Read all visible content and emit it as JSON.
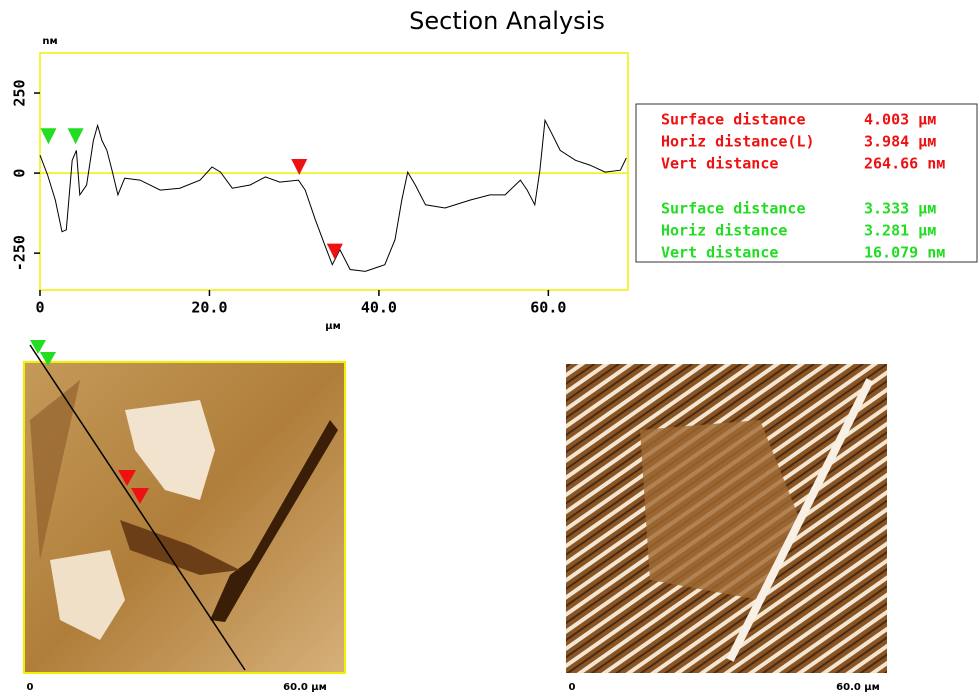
{
  "chart_data": {
    "type": "line",
    "title": "Section Analysis",
    "y_unit": "nм",
    "x_unit": "µм",
    "x": [
      0,
      0.9,
      1.8,
      2.6,
      3.1,
      3.8,
      4.3,
      4.7,
      5.5,
      6.3,
      6.8,
      7.3,
      7.9,
      8.5,
      9.2,
      10,
      11.8,
      14.2,
      16.5,
      18.9,
      20.3,
      21.3,
      22.7,
      24.8,
      26.6,
      28.3,
      30.5,
      31.3,
      32.5,
      33.6,
      34.5,
      35.4,
      36.6,
      38.4,
      40.7,
      41.9,
      42.7,
      43.4,
      44.3,
      45.5,
      47.8,
      50.8,
      53.1,
      54.9,
      56.7,
      57.5,
      58.4,
      59,
      59.6,
      60.2,
      61.4,
      63.2,
      64.9,
      66.7,
      68.5,
      69.2
    ],
    "series": [
      {
        "color": "#000000",
        "values": [
          56,
          -6,
          -84,
          -183,
          -177,
          40,
          71,
          -68,
          -37,
          102,
          149,
          102,
          71,
          9,
          -68,
          -16,
          -22,
          -53,
          -47,
          -22,
          19,
          3,
          -47,
          -37,
          -12,
          -28,
          -22,
          -53,
          -146,
          -224,
          -286,
          -239,
          -301,
          -307,
          -286,
          -208,
          -84,
          3,
          -37,
          -99,
          -109,
          -84,
          -68,
          -68,
          -22,
          -53,
          -99,
          9,
          165,
          134,
          71,
          40,
          25,
          3,
          9,
          47
        ]
      }
    ],
    "xlim": [
      0,
      69.4
    ],
    "ylim": [
      -365,
      375
    ],
    "xticks": [
      0,
      {
        "value": 20,
        "label": "20.0"
      },
      {
        "value": 40,
        "label": "40.0"
      },
      {
        "value": 60,
        "label": "60.0"
      }
    ],
    "yticks": [
      250,
      0,
      -250
    ],
    "zero_line_color": "#f0f000",
    "frame_color": "#f0f000",
    "cursors": [
      {
        "color": "#22dd22",
        "x": 1.0,
        "y": 90
      },
      {
        "color": "#22dd22",
        "x": 4.2,
        "y": 90
      },
      {
        "color": "#ee1111",
        "x": 30.6,
        "y": -6
      },
      {
        "color": "#ee1111",
        "x": 34.8,
        "y": -270
      }
    ]
  },
  "measurements": {
    "red": [
      {
        "label": "Surface distance",
        "value": "4.003 µм"
      },
      {
        "label": "Horiz distance(L)",
        "value": "3.984 µм"
      },
      {
        "label": "Vert distance",
        "value": "264.66 nм"
      }
    ],
    "green": [
      {
        "label": "Surface distance",
        "value": "3.333 µм"
      },
      {
        "label": "Horiz distance",
        "value": "3.281 µм"
      },
      {
        "label": "Vert distance",
        "value": "16.079 nм"
      }
    ]
  },
  "images": [
    {
      "start": "0",
      "end": "60.0 µм"
    },
    {
      "start": "0",
      "end": "60.0 µм"
    }
  ]
}
